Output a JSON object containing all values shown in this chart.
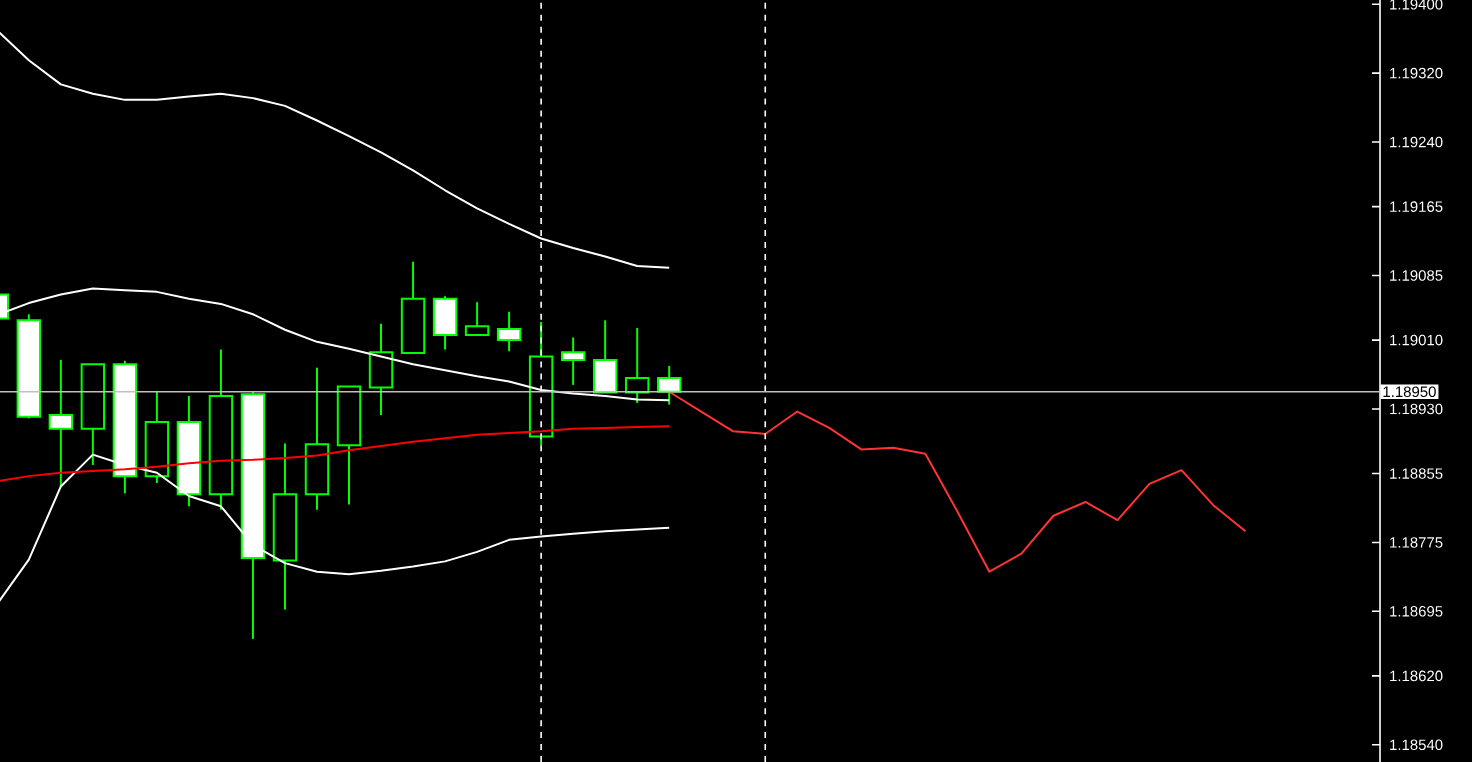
{
  "chart_data": {
    "type": "candlestick",
    "categories": [
      null,
      null,
      null,
      null,
      null,
      null,
      null,
      null,
      null,
      null,
      null,
      null,
      null,
      null,
      null,
      null,
      null,
      null,
      null,
      null,
      null,
      null,
      null,
      null,
      null,
      null,
      null,
      null,
      null,
      null,
      null,
      null,
      null,
      null,
      null,
      null,
      null,
      null,
      null,
      null,
      null,
      null,
      null,
      null
    ],
    "color": "#00ff00",
    "ohlc": [
      [
        1.19063,
        1.19063,
        1.19035,
        1.19035
      ],
      [
        1.19033,
        1.1904,
        1.18919,
        1.18921
      ],
      [
        1.18923,
        1.18987,
        1.18839,
        1.18907
      ],
      [
        1.18907,
        1.18982,
        1.18865,
        1.18982
      ],
      [
        1.18982,
        1.18986,
        1.18832,
        1.18852
      ],
      [
        1.18852,
        1.1895,
        1.18844,
        1.18915
      ],
      [
        1.18915,
        1.18945,
        1.18817,
        1.18831
      ],
      [
        1.18831,
        1.18999,
        1.18813,
        1.18945
      ],
      [
        1.18947,
        1.1895,
        1.18663,
        1.18757
      ],
      [
        1.18754,
        1.1889,
        1.18697,
        1.18831
      ],
      [
        1.18831,
        1.18978,
        1.18813,
        1.18889
      ],
      [
        1.18888,
        1.18956,
        1.18819,
        1.18956
      ],
      [
        1.18955,
        1.19029,
        1.18923,
        1.18996
      ],
      [
        1.18995,
        1.19101,
        1.18994,
        1.19058
      ],
      [
        1.19058,
        1.19061,
        1.18999,
        1.19016
      ],
      [
        1.19016,
        1.19054,
        1.19016,
        1.19026
      ],
      [
        1.19023,
        1.19043,
        1.18997,
        1.1901
      ],
      [
        1.18898,
        1.19031,
        1.18888,
        1.18991
      ],
      [
        1.18996,
        1.19013,
        1.18958,
        1.18987
      ],
      [
        1.18987,
        1.19033,
        1.18949,
        1.18949
      ],
      [
        1.18949,
        1.19024,
        1.18937,
        1.18966
      ],
      [
        1.18966,
        1.1898,
        1.18935,
        1.1895
      ],
      null,
      null,
      null,
      null,
      null,
      null,
      null,
      null,
      null,
      null,
      null,
      null,
      null,
      null,
      null,
      null,
      null,
      null,
      null,
      null,
      null,
      null
    ],
    "series": [
      {
        "type": "line",
        "color": "#ffffff",
        "values": [
          1.1937,
          1.19335,
          1.19307,
          1.19296,
          1.19289,
          1.19289,
          1.19293,
          1.19296,
          1.19291,
          1.19282,
          1.19265,
          1.19247,
          1.19228,
          1.19207,
          1.19184,
          1.19163,
          1.19145,
          1.19128,
          1.19117,
          1.19107,
          1.19096,
          1.19094,
          null,
          null,
          null,
          null,
          null,
          null,
          null,
          null,
          null,
          null,
          null,
          null,
          null,
          null,
          null,
          null,
          null,
          null,
          null,
          null,
          null,
          null
        ]
      },
      {
        "type": "line",
        "color": "#ffffff",
        "values": [
          1.19039,
          1.19053,
          1.19063,
          1.1907,
          1.19068,
          1.19066,
          1.19058,
          1.19052,
          1.1904,
          1.19022,
          1.19008,
          1.19,
          1.18991,
          1.18982,
          1.18975,
          1.18968,
          1.18962,
          1.18952,
          1.18948,
          1.18945,
          1.18941,
          1.1894,
          null,
          null,
          null,
          null,
          null,
          null,
          null,
          null,
          null,
          null,
          null,
          null,
          null,
          null,
          null,
          null,
          null,
          null,
          null,
          null,
          null,
          null
        ]
      },
      {
        "type": "line",
        "color": "#ffffff",
        "values": [
          1.18703,
          1.18755,
          1.1884,
          1.18877,
          1.18865,
          1.18856,
          1.18829,
          1.18817,
          1.18772,
          1.18751,
          1.18741,
          1.18738,
          1.18742,
          1.18747,
          1.18753,
          1.18764,
          1.18778,
          1.18782,
          1.18785,
          1.18788,
          1.1879,
          1.18792,
          null,
          null,
          null,
          null,
          null,
          null,
          null,
          null,
          null,
          null,
          null,
          null,
          null,
          null,
          null,
          null,
          null,
          null,
          null,
          null,
          null,
          null
        ]
      },
      {
        "type": "line",
        "color": "#ff0000",
        "values": [
          1.18846,
          1.18852,
          1.18856,
          1.18858,
          1.1886,
          1.18863,
          1.18867,
          1.1887,
          1.18871,
          1.18873,
          1.18876,
          1.18882,
          1.18887,
          1.18892,
          1.18896,
          1.189,
          1.18902,
          1.18904,
          1.18907,
          1.18908,
          1.18909,
          1.1891,
          null,
          null,
          null,
          null,
          null,
          null,
          null,
          null,
          null,
          null,
          null,
          null,
          null,
          null,
          null,
          null,
          null,
          null,
          null,
          null,
          null,
          null
        ]
      },
      {
        "type": "line",
        "color": "#ff3333",
        "values": [
          null,
          null,
          null,
          null,
          null,
          null,
          null,
          null,
          null,
          null,
          null,
          null,
          null,
          null,
          null,
          null,
          null,
          null,
          null,
          null,
          null,
          1.1895,
          1.18927,
          1.18904,
          1.18901,
          1.18927,
          1.18908,
          1.18883,
          1.18885,
          1.18878,
          1.18811,
          1.18741,
          1.18762,
          1.18806,
          1.18822,
          1.18801,
          1.18843,
          1.18859,
          1.18818,
          1.18788,
          null,
          null,
          null,
          null
        ]
      }
    ],
    "ylim": [
      1.1852,
      1.19405
    ],
    "yticks": [
      {
        "value": 1.194,
        "label": "1.19400"
      },
      {
        "value": 1.1932,
        "label": "1.19320"
      },
      {
        "value": 1.1924,
        "label": "1.19240"
      },
      {
        "value": 1.19165,
        "label": "1.19165"
      },
      {
        "value": 1.19085,
        "label": "1.19085"
      },
      {
        "value": 1.1901,
        "label": "1.19010"
      },
      {
        "value": 1.1893,
        "label": "1.18930"
      },
      {
        "value": 1.18855,
        "label": "1.18855"
      },
      {
        "value": 1.18775,
        "label": "1.18775"
      },
      {
        "value": 1.18695,
        "label": "1.18695"
      },
      {
        "value": 1.1862,
        "label": "1.18620"
      },
      {
        "value": 1.1854,
        "label": "1.18540"
      }
    ],
    "tick_labels": "y",
    "ref_lines": [
      {
        "axis": "y",
        "value": 1.1895,
        "label": "1.18950",
        "color": "#c0c0c0",
        "line_style": "solid"
      }
    ]
  }
}
